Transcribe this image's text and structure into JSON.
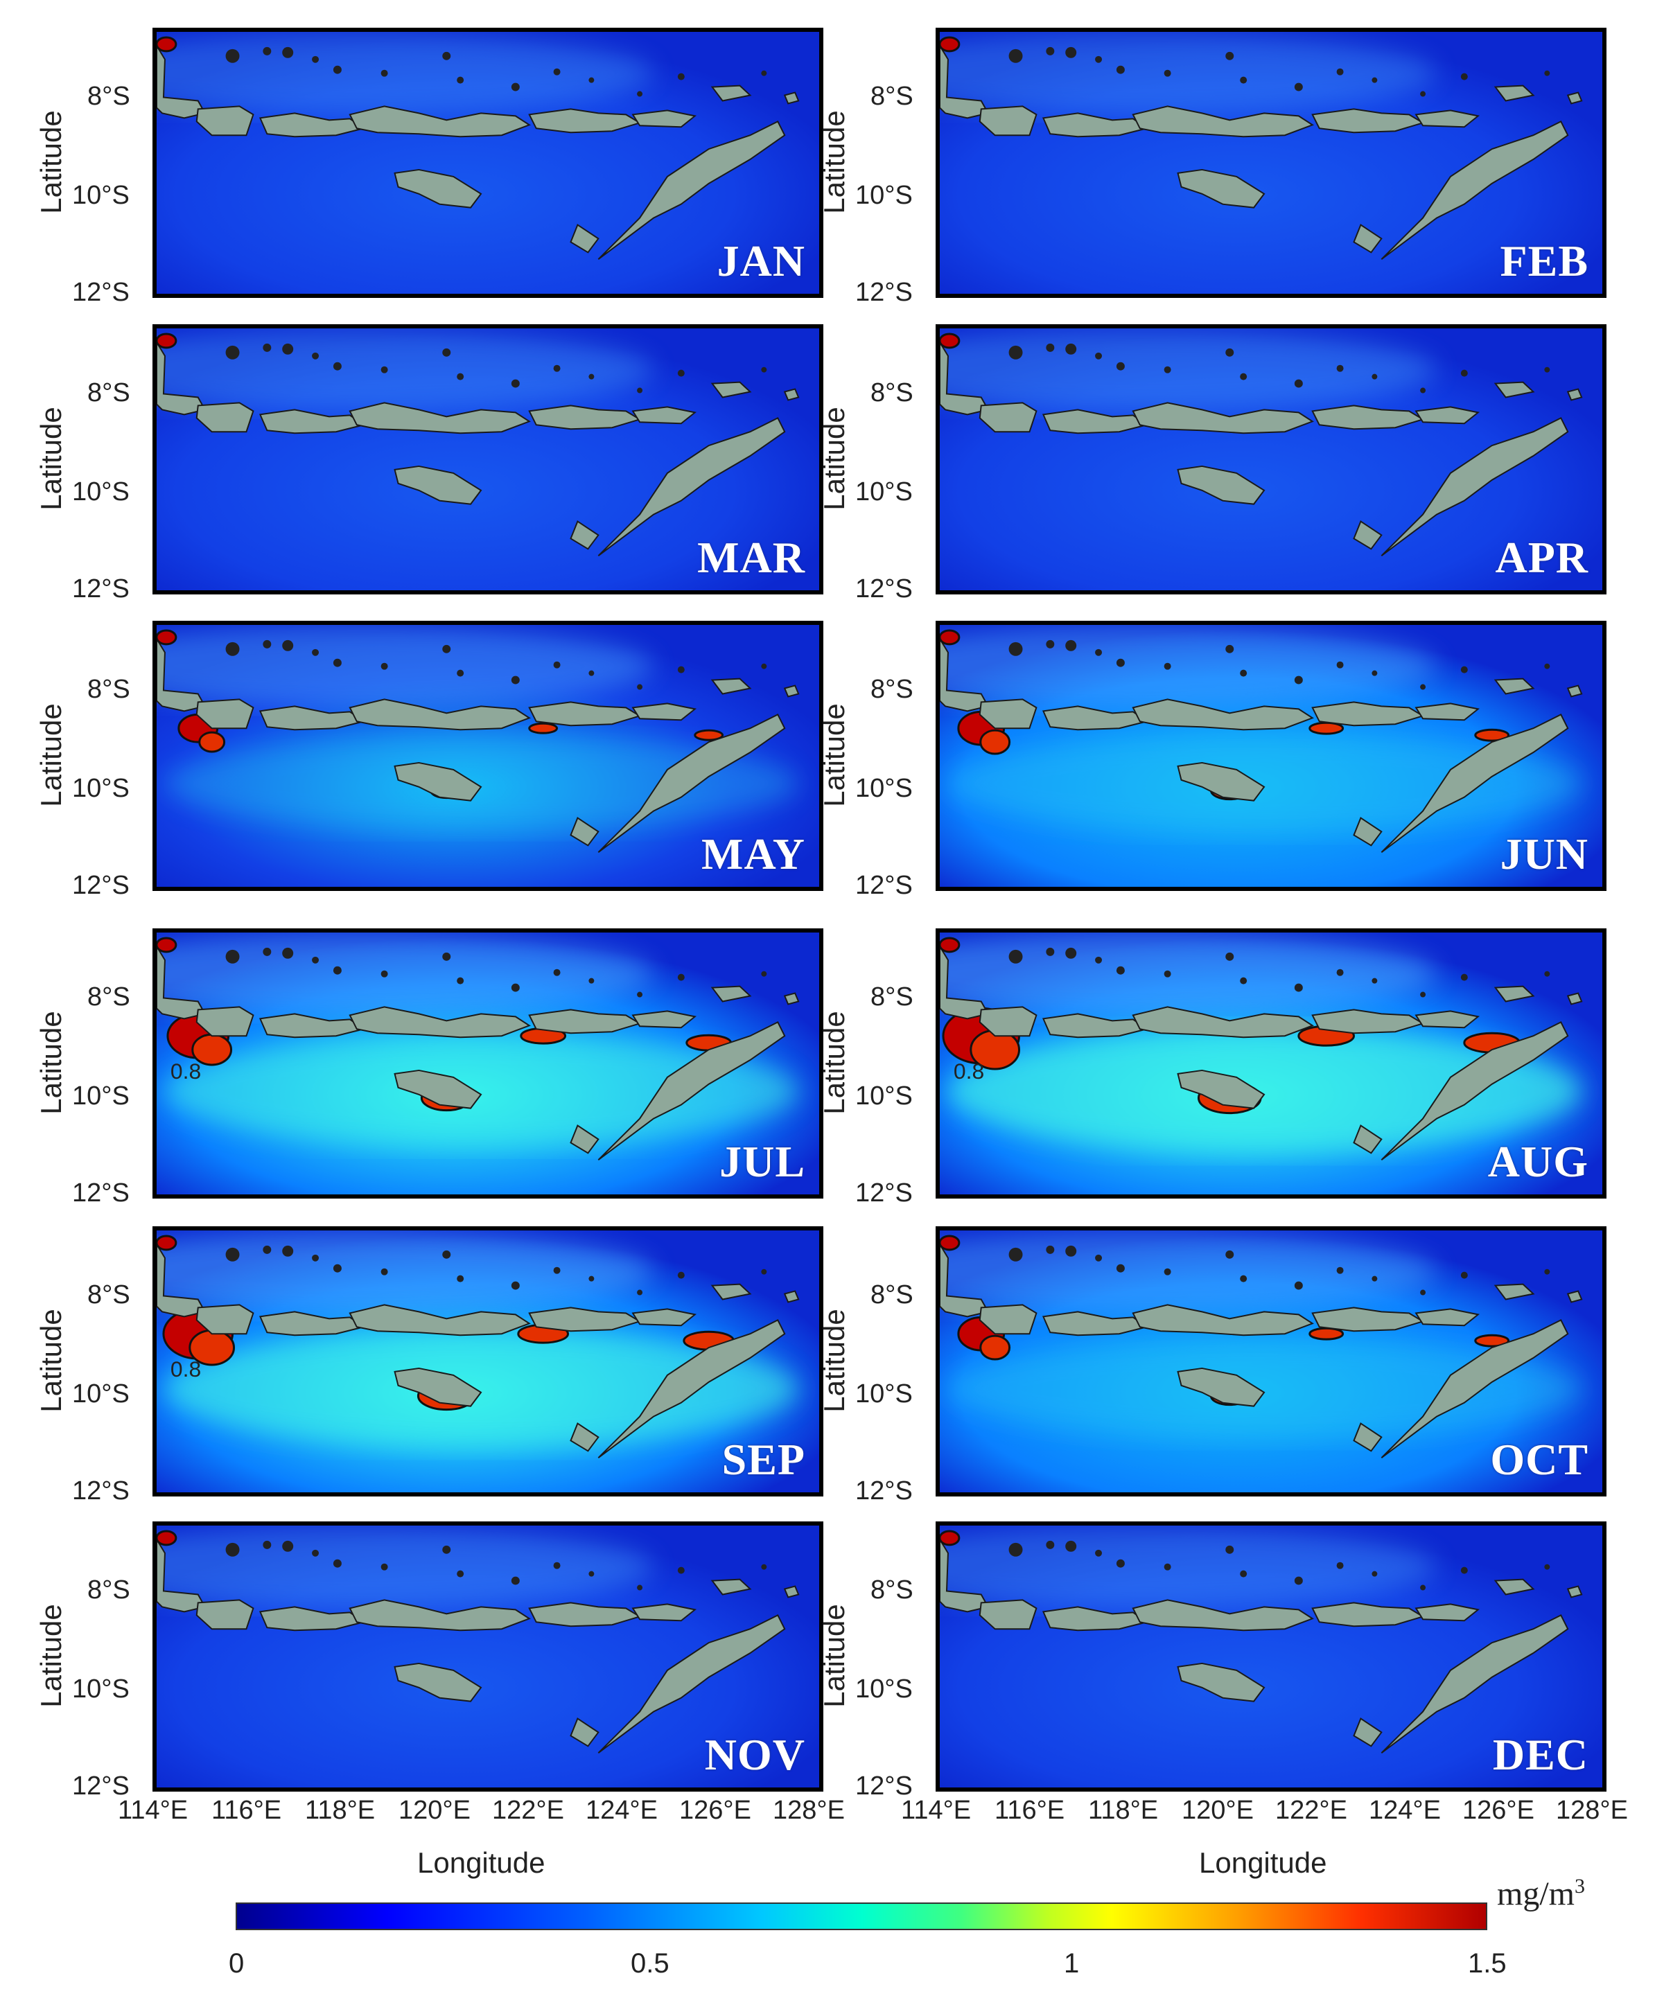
{
  "map": {
    "panels": [
      {
        "month": "JAN",
        "upwelling": 0.0
      },
      {
        "month": "FEB",
        "upwelling": 0.0
      },
      {
        "month": "MAR",
        "upwelling": 0.1
      },
      {
        "month": "APR",
        "upwelling": 0.2
      },
      {
        "month": "MAY",
        "upwelling": 0.5
      },
      {
        "month": "JUN",
        "upwelling": 0.6
      },
      {
        "month": "JUL",
        "upwelling": 0.8
      },
      {
        "month": "AUG",
        "upwelling": 1.0
      },
      {
        "month": "SEP",
        "upwelling": 0.9
      },
      {
        "month": "OCT",
        "upwelling": 0.6
      },
      {
        "month": "NOV",
        "upwelling": 0.2
      },
      {
        "month": "DEC",
        "upwelling": 0.1
      }
    ],
    "lat_ticks": [
      "8°S",
      "10°S",
      "12°S"
    ],
    "lon_ticks": [
      "114°E",
      "116°E",
      "118°E",
      "120°E",
      "122°E",
      "124°E",
      "126°E",
      "128°E"
    ],
    "ylabel": "Latitude",
    "xlabel": "Longitude",
    "contour_label": "0.8",
    "colorbar": {
      "unit": "mg/m",
      "unit_sup": "3",
      "ticks": [
        "0",
        "0.5",
        "1",
        "1.5"
      ],
      "colors": {
        "low": "#00008f",
        "mid": "#00ffd0",
        "high": "#b00000",
        "land": "#8fa89a"
      }
    }
  }
}
